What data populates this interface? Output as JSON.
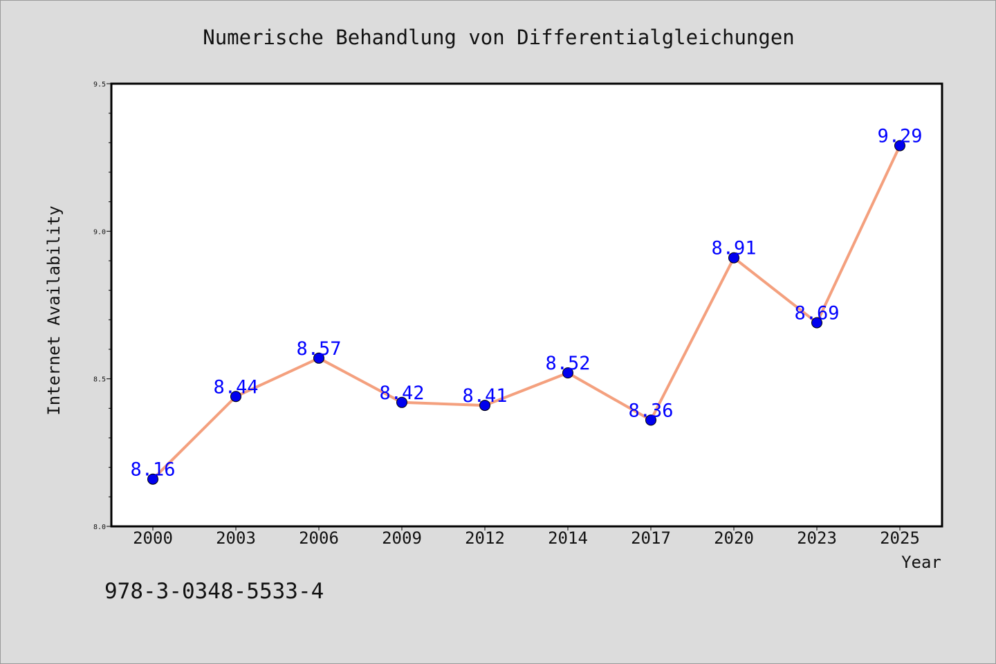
{
  "chart_data": {
    "type": "line",
    "title": "Numerische Behandlung von Differentialgleichungen",
    "xlabel": "Year",
    "ylabel": "Internet Availability",
    "categories": [
      "2000",
      "2003",
      "2006",
      "2009",
      "2012",
      "2014",
      "2017",
      "2020",
      "2023",
      "2025"
    ],
    "series": [
      {
        "values": [
          8.16,
          8.44,
          8.57,
          8.42,
          8.41,
          8.52,
          8.36,
          8.91,
          8.69,
          9.29
        ],
        "line_color": "#f4a07e",
        "marker_color": "#0000ee"
      }
    ],
    "data_labels": [
      "8.16",
      "8.44",
      "8.57",
      "8.42",
      "8.41",
      "8.52",
      "8.36",
      "8.91",
      "8.69",
      "9.29"
    ],
    "data_label_color": "#0000ff",
    "ylim": [
      8.0,
      9.5
    ],
    "y_ticks": [
      "8.0",
      "8.5",
      "9.0",
      "9.5"
    ],
    "grid": false,
    "legend": "none"
  },
  "footer": {
    "isbn": "978-3-0348-5533-4"
  }
}
